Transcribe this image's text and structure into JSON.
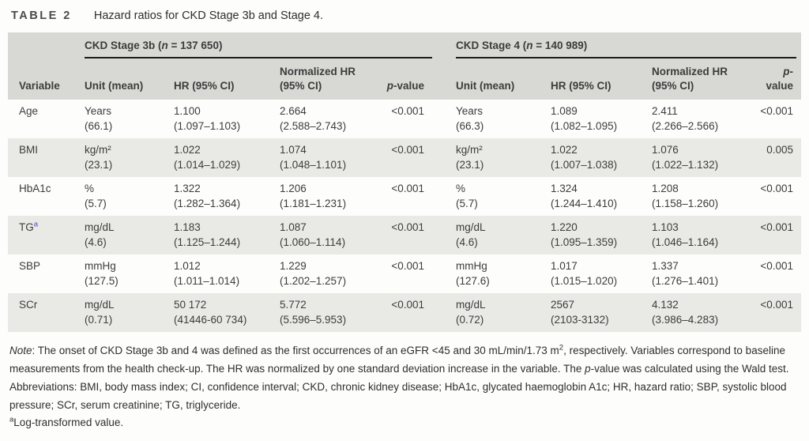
{
  "colors": {
    "header_bg": "#d8d8d5",
    "stripe_bg": "#e9e9e6",
    "rule": "#1c1c1c",
    "text": "#3c3c3c",
    "footnote_marker": "#4a4ac8"
  },
  "caption": {
    "tag": "TABLE 2",
    "text": "Hazard ratios for CKD Stage 3b and Stage 4."
  },
  "table": {
    "groups": [
      {
        "label": [
          {
            "t": "CKD Stage 3b ("
          },
          {
            "t": "n",
            "i": true
          },
          {
            "t": " = 137 650)"
          }
        ]
      },
      {
        "label": [
          {
            "t": "CKD Stage 4 ("
          },
          {
            "t": "n",
            "i": true
          },
          {
            "t": " = 140 989)"
          }
        ]
      }
    ],
    "col_headers": {
      "variable": "Variable",
      "unit": "Unit (mean)",
      "hr": "HR (95% CI)",
      "normalized_hr": "Normalized HR (95% CI)",
      "p_value": [
        {
          "t": "p",
          "i": true
        },
        {
          "t": "-value"
        }
      ]
    },
    "rows": [
      {
        "variable": "Age",
        "variable_sup": "",
        "s3b": {
          "unit": "Years",
          "mean": "(66.1)",
          "hr": "1.100",
          "hr_ci": "(1.097–1.103)",
          "nhr": "2.664",
          "nhr_ci": "(2.588–2.743)",
          "p": "<0.001"
        },
        "s4": {
          "unit": "Years",
          "mean": "(66.3)",
          "hr": "1.089",
          "hr_ci": "(1.082–1.095)",
          "nhr": "2.411",
          "nhr_ci": "(2.266–2.566)",
          "p": "<0.001"
        }
      },
      {
        "variable": "BMI",
        "variable_sup": "",
        "s3b": {
          "unit": "kg/m²",
          "mean": "(23.1)",
          "hr": "1.022",
          "hr_ci": "(1.014–1.029)",
          "nhr": "1.074",
          "nhr_ci": "(1.048–1.101)",
          "p": "<0.001"
        },
        "s4": {
          "unit": "kg/m²",
          "mean": "(23.1)",
          "hr": "1.022",
          "hr_ci": "(1.007–1.038)",
          "nhr": "1.076",
          "nhr_ci": "(1.022–1.132)",
          "p": "0.005"
        }
      },
      {
        "variable": "HbA1c",
        "variable_sup": "",
        "s3b": {
          "unit": "%",
          "mean": "(5.7)",
          "hr": "1.322",
          "hr_ci": "(1.282–1.364)",
          "nhr": "1.206",
          "nhr_ci": "(1.181–1.231)",
          "p": "<0.001"
        },
        "s4": {
          "unit": "%",
          "mean": "(5.7)",
          "hr": "1.324",
          "hr_ci": "(1.244–1.410)",
          "nhr": "1.208",
          "nhr_ci": "(1.158–1.260)",
          "p": "<0.001"
        }
      },
      {
        "variable": "TG",
        "variable_sup": "a",
        "s3b": {
          "unit": "mg/dL",
          "mean": "(4.6)",
          "hr": "1.183",
          "hr_ci": "(1.125–1.244)",
          "nhr": "1.087",
          "nhr_ci": "(1.060–1.114)",
          "p": "<0.001"
        },
        "s4": {
          "unit": "mg/dL",
          "mean": "(4.6)",
          "hr": "1.220",
          "hr_ci": "(1.095–1.359)",
          "nhr": "1.103",
          "nhr_ci": "(1.046–1.164)",
          "p": "<0.001"
        }
      },
      {
        "variable": "SBP",
        "variable_sup": "",
        "s3b": {
          "unit": "mmHg",
          "mean": "(127.5)",
          "hr": "1.012",
          "hr_ci": "(1.011–1.014)",
          "nhr": "1.229",
          "nhr_ci": "(1.202–1.257)",
          "p": "<0.001"
        },
        "s4": {
          "unit": "mmHg",
          "mean": "(127.6)",
          "hr": "1.017",
          "hr_ci": "(1.015–1.020)",
          "nhr": "1.337",
          "nhr_ci": "(1.276–1.401)",
          "p": "<0.001"
        }
      },
      {
        "variable": "SCr",
        "variable_sup": "",
        "s3b": {
          "unit": "mg/dL",
          "mean": "(0.71)",
          "hr": "50 172",
          "hr_ci": "(41446-60 734)",
          "nhr": "5.772",
          "nhr_ci": "(5.596–5.953)",
          "p": "<0.001"
        },
        "s4": {
          "unit": "mg/dL",
          "mean": "(0.72)",
          "hr": "2567",
          "hr_ci": "(2103-3132)",
          "nhr": "4.132",
          "nhr_ci": "(3.986–4.283)",
          "p": "<0.001"
        }
      }
    ]
  },
  "notes": {
    "note": [
      {
        "t": "Note",
        "i": true
      },
      {
        "t": ": The onset of CKD Stage 3b and 4 was defined as the first occurrences of an eGFR <45 and 30 mL/min/1.73 m"
      },
      {
        "t": "2",
        "sup": true
      },
      {
        "t": ", respectively. Variables correspond to baseline measurements from the health check-up. The HR was normalized by one standard deviation increase in the variable. The "
      },
      {
        "t": "p",
        "i": true
      },
      {
        "t": "-value was calculated using the Wald test."
      }
    ],
    "abbreviations": [
      {
        "t": "Abbreviations: BMI, body mass index; CI, confidence interval; CKD, chronic kidney disease; HbA1c, glycated haemoglobin A1c; HR, hazard ratio; SBP, systolic blood pressure; SCr, serum creatinine; TG, triglyceride."
      }
    ],
    "footnote": [
      {
        "t": "a",
        "sup": true
      },
      {
        "t": "Log-transformed value."
      }
    ]
  }
}
